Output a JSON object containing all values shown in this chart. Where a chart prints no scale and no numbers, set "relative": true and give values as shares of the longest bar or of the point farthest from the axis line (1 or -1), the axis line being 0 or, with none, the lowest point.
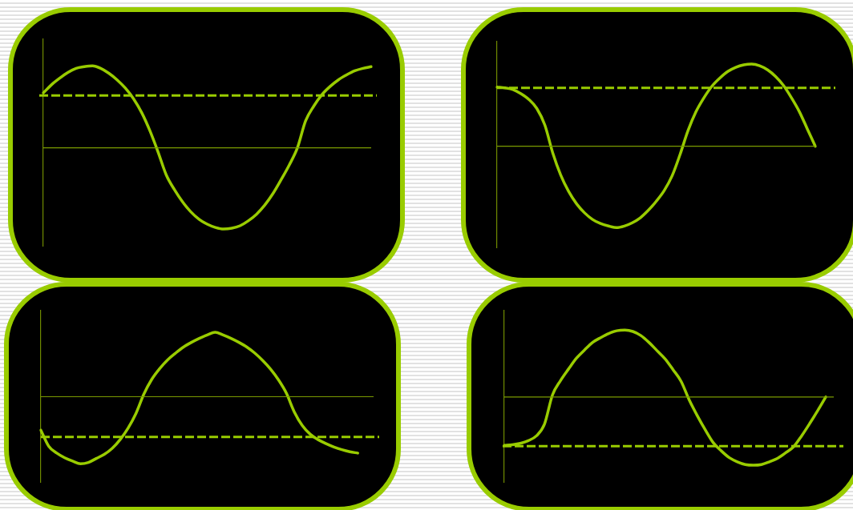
{
  "chart_data": [
    {
      "type": "line",
      "relative": true,
      "marker": "none",
      "categories": [
        null,
        null,
        null,
        null,
        null,
        null,
        null,
        null,
        null,
        null,
        null,
        null,
        null,
        null,
        null,
        null,
        null,
        null,
        null,
        null,
        null,
        null,
        null,
        null,
        null,
        null,
        null,
        null,
        null,
        null,
        null,
        null,
        null,
        null,
        null,
        null,
        null,
        null,
        null,
        null,
        null
      ],
      "series": [
        {
          "color": "#99cc00",
          "values": [
            0.67,
            0.77,
            0.85,
            0.92,
            0.97,
            0.99,
            1,
            0.97,
            0.91,
            0.83,
            0.73,
            0.6,
            0.43,
            0.21,
            -0.05,
            -0.33,
            -0.51,
            -0.66,
            -0.78,
            -0.87,
            -0.93,
            -0.97,
            -0.99,
            -0.98,
            -0.95,
            -0.89,
            -0.81,
            -0.7,
            -0.56,
            -0.39,
            -0.21,
            0,
            0.33,
            0.51,
            0.65,
            0.75,
            0.83,
            0.89,
            0.94,
            0.97,
            0.99
          ]
        }
      ],
      "ref_lines": [
        {
          "axis": "y",
          "value": 0,
          "color": "#7a9a00",
          "line_style": "solid"
        },
        {
          "axis": "y",
          "value": 0.64,
          "color": "#99cc00",
          "line_style": "dashed"
        }
      ]
    },
    {
      "type": "line",
      "relative": true,
      "marker": "none",
      "categories": [
        null,
        null,
        null,
        null,
        null,
        null,
        null,
        null,
        null,
        null,
        null,
        null,
        null,
        null,
        null,
        null,
        null,
        null,
        null,
        null,
        null,
        null,
        null,
        null,
        null,
        null,
        null,
        null,
        null,
        null,
        null,
        null,
        null,
        null,
        null,
        null,
        null,
        null,
        null,
        null,
        null
      ],
      "series": [
        {
          "color": "#99cc00",
          "values": [
            0.72,
            0.71,
            0.69,
            0.64,
            0.57,
            0.46,
            0.26,
            -0.08,
            -0.35,
            -0.55,
            -0.7,
            -0.81,
            -0.89,
            -0.94,
            -0.97,
            -0.99,
            -0.97,
            -0.93,
            -0.87,
            -0.78,
            -0.67,
            -0.54,
            -0.36,
            -0.1,
            0.19,
            0.42,
            0.59,
            0.73,
            0.83,
            0.91,
            0.96,
            0.99,
            1,
            0.98,
            0.93,
            0.85,
            0.74,
            0.59,
            0.42,
            0.21,
            0
          ]
        }
      ],
      "ref_lines": [
        {
          "axis": "y",
          "value": 0,
          "color": "#7a9a00",
          "line_style": "solid"
        },
        {
          "axis": "y",
          "value": 0.71,
          "color": "#99cc00",
          "line_style": "dashed"
        }
      ]
    },
    {
      "type": "line",
      "relative": true,
      "marker": "none",
      "categories": [
        null,
        null,
        null,
        null,
        null,
        null,
        null,
        null,
        null,
        null,
        null,
        null,
        null,
        null,
        null,
        null,
        null,
        null,
        null,
        null,
        null,
        null,
        null,
        null,
        null,
        null,
        null,
        null,
        null,
        null,
        null,
        null,
        null,
        null,
        null,
        null,
        null,
        null,
        null,
        null,
        null,
        null,
        null
      ],
      "series": [
        {
          "color": "#99cc00",
          "values": [
            -0.5,
            -0.74,
            -0.84,
            -0.91,
            -0.96,
            -1,
            -0.98,
            -0.92,
            -0.86,
            -0.77,
            -0.64,
            -0.47,
            -0.25,
            0.04,
            0.26,
            0.42,
            0.55,
            0.65,
            0.74,
            0.81,
            0.87,
            0.92,
            0.96,
            0.92,
            0.87,
            0.81,
            0.74,
            0.65,
            0.54,
            0.41,
            0.25,
            0.05,
            -0.23,
            -0.43,
            -0.56,
            -0.64,
            -0.7,
            -0.75,
            -0.79,
            -0.82,
            -0.84,
            null,
            null
          ]
        }
      ],
      "ref_lines": [
        {
          "axis": "y",
          "value": 0,
          "color": "#7a9a00",
          "line_style": "solid"
        },
        {
          "axis": "y",
          "value": -0.6,
          "color": "#99cc00",
          "line_style": "dashed"
        }
      ]
    },
    {
      "type": "line",
      "relative": true,
      "marker": "none",
      "categories": [
        null,
        null,
        null,
        null,
        null,
        null,
        null,
        null,
        null,
        null,
        null,
        null,
        null,
        null,
        null,
        null,
        null,
        null,
        null,
        null,
        null,
        null,
        null,
        null,
        null,
        null,
        null,
        null,
        null,
        null,
        null,
        null,
        null,
        null,
        null,
        null,
        null,
        null,
        null,
        null,
        null,
        null
      ],
      "series": [
        {
          "color": "#99cc00",
          "values": [
            -0.71,
            -0.7,
            -0.68,
            -0.64,
            -0.57,
            -0.4,
            0.03,
            0.24,
            0.41,
            0.57,
            0.69,
            0.8,
            0.87,
            0.93,
            0.97,
            0.98,
            0.96,
            0.9,
            0.8,
            0.68,
            0.56,
            0.4,
            0.23,
            -0.04,
            -0.27,
            -0.48,
            -0.67,
            -0.79,
            -0.89,
            -0.95,
            -0.99,
            -1,
            -0.99,
            -0.95,
            -0.9,
            -0.82,
            -0.73,
            -0.57,
            -0.39,
            -0.2,
            0,
            null
          ]
        }
      ],
      "ref_lines": [
        {
          "axis": "y",
          "value": 0,
          "color": "#7a9a00",
          "line_style": "solid"
        },
        {
          "axis": "y",
          "value": -0.72,
          "color": "#99cc00",
          "line_style": "dashed"
        }
      ]
    }
  ]
}
